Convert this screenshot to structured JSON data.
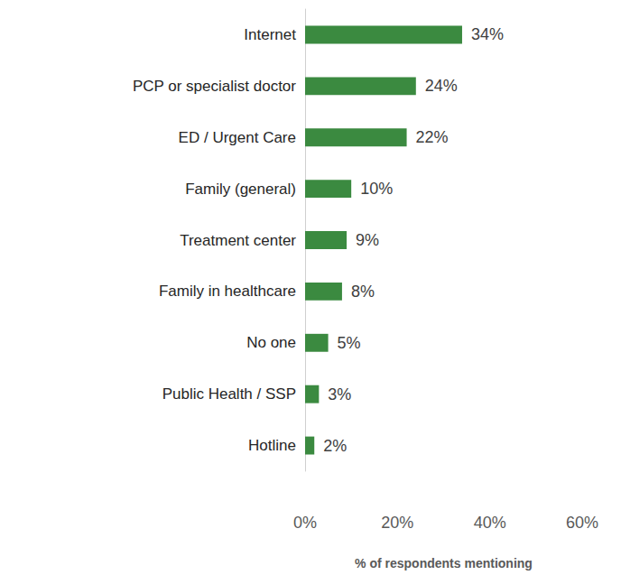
{
  "chart_data": {
    "type": "bar",
    "orientation": "horizontal",
    "categories": [
      "Internet",
      "PCP or specialist doctor",
      "ED / Urgent Care",
      "Family (general)",
      "Treatment center",
      "Family in healthcare",
      "No one",
      "Public Health / SSP",
      "Hotline"
    ],
    "values": [
      34,
      24,
      22,
      10,
      9,
      8,
      5,
      3,
      2
    ],
    "value_labels": [
      "34%",
      "24%",
      "22%",
      "10%",
      "9%",
      "8%",
      "5%",
      "3%",
      "2%"
    ],
    "color": "#3b8a40",
    "xlabel": "% of respondents mentioning",
    "xlim": [
      0,
      60
    ],
    "xticks": [
      {
        "value": 0,
        "label": "0%"
      },
      {
        "value": 20,
        "label": "20%"
      },
      {
        "value": 40,
        "label": "40%"
      },
      {
        "value": 60,
        "label": "60%"
      }
    ],
    "grid": false,
    "data_labels": true
  }
}
